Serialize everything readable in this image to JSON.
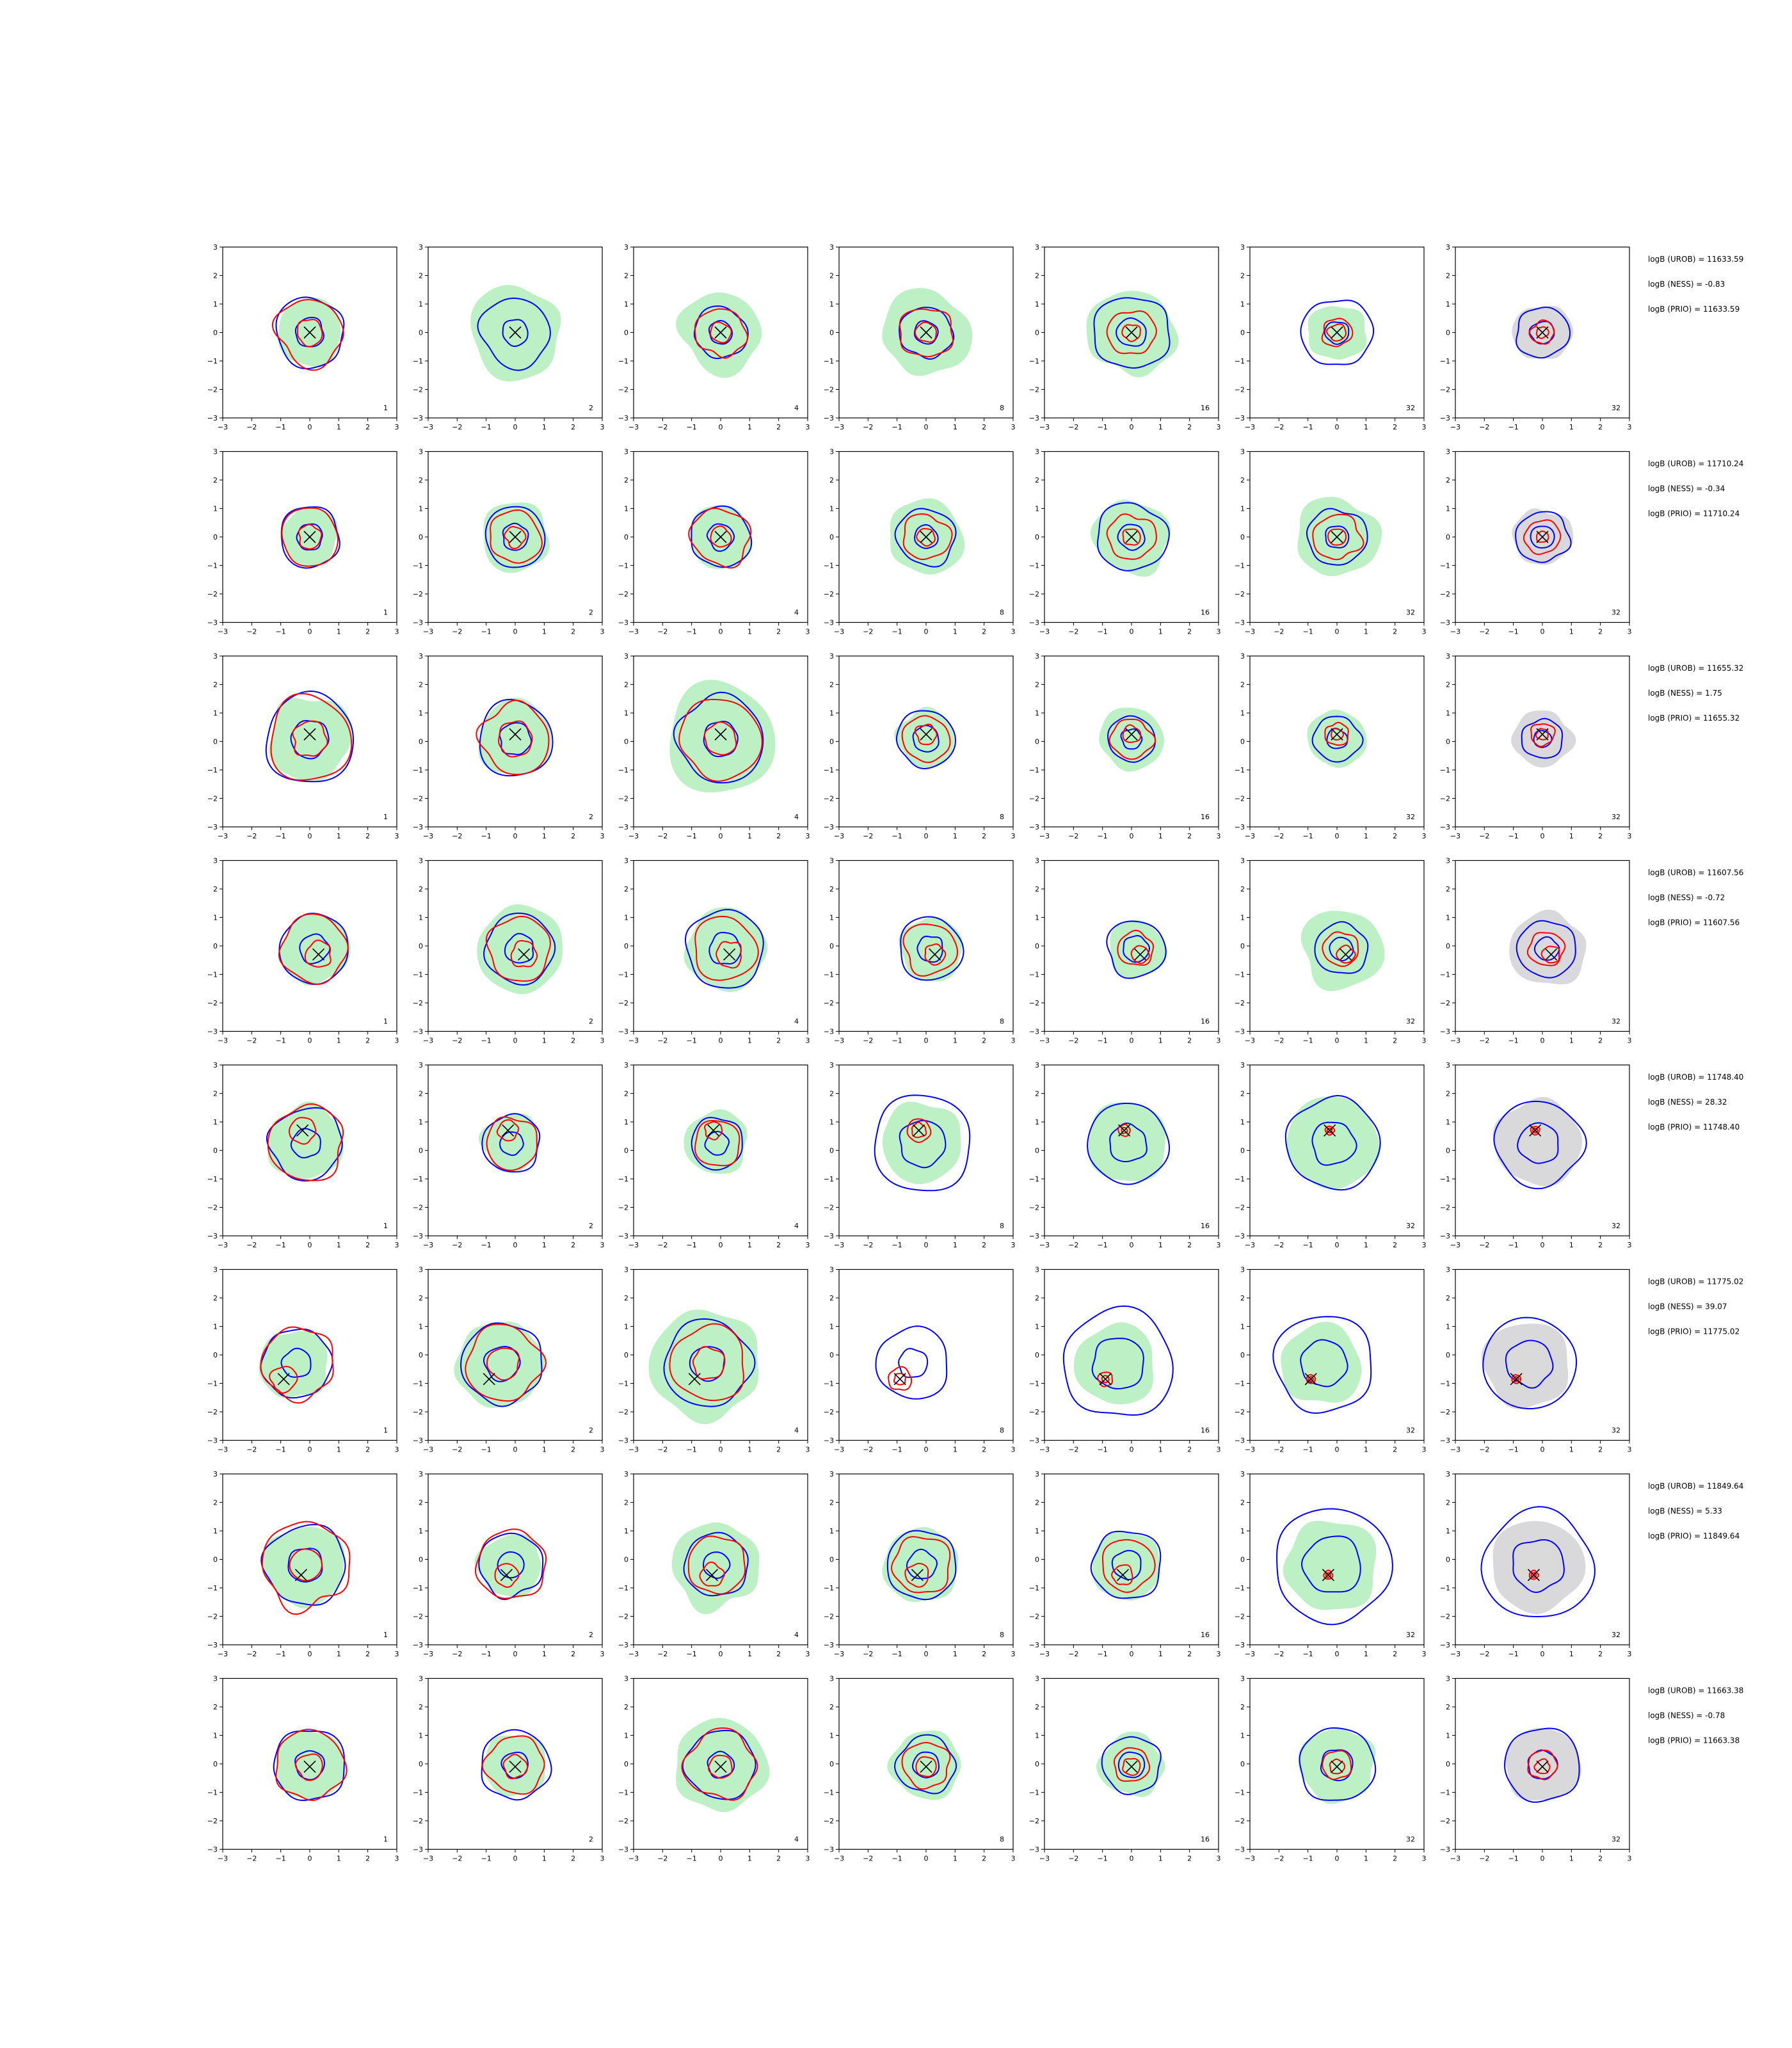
{
  "figure": {
    "colors": {
      "unrobust_contour": "#0000ff",
      "robust_contour": "#ff0000",
      "filled_green": "#bdf0c4",
      "filled_grey": "#d9d9db",
      "true_marker": "#000000"
    },
    "x_ticks": [
      "−3",
      "−2",
      "−1",
      "0",
      "1",
      "2",
      "3"
    ],
    "y_ticks": [
      "3",
      "2",
      "1",
      "0",
      "−1",
      "−2",
      "−3"
    ],
    "xlim": [
      -3,
      3
    ],
    "ylim": [
      -3,
      3
    ],
    "column_tags": [
      "1",
      "2",
      "4",
      "8",
      "16",
      "32",
      "32"
    ],
    "last_column_fill": "grey"
  },
  "chart_data": [
    {
      "type": "contour",
      "row": 1,
      "true_point": [
        0.0,
        0.0
      ],
      "stats": [
        "logB (UROB) = 11633.59",
        "logB (NESS) = -0.83",
        "logB (PRIO) = 11633.59"
      ],
      "panels": [
        {
          "n": 1,
          "fill_r": 1.15,
          "blue_r": [
            1.2,
            0.5
          ],
          "red_r": [
            1.15,
            0.45
          ]
        },
        {
          "n": 2,
          "fill_r": 1.6,
          "blue_r": [
            1.2,
            0.45
          ],
          "red_r": []
        },
        {
          "n": 4,
          "fill_r": 1.4,
          "blue_r": [
            0.9,
            0.4
          ],
          "red_r": [
            0.85,
            0.35
          ]
        },
        {
          "n": 8,
          "fill_r": 1.5,
          "blue_r": [
            0.9,
            0.4
          ],
          "red_r": [
            0.9,
            0.35
          ]
        },
        {
          "n": 16,
          "fill_r": 1.5,
          "blue_r": [
            1.3,
            0.5
          ],
          "red_r": [
            0.8,
            0.3
          ]
        },
        {
          "n": 32,
          "fill_r": 1.0,
          "blue_r": [
            1.2,
            0.4
          ],
          "red_r": [
            0.5,
            0.3
          ]
        },
        {
          "n": 32,
          "fill_r": 1.0,
          "blue_r": [
            0.9,
            0.4
          ],
          "red_r": [
            0.4,
            0.2
          ]
        }
      ]
    },
    {
      "type": "contour",
      "row": 2,
      "true_point": [
        0.0,
        0.0
      ],
      "stats": [
        "logB (UROB) = 11710.24",
        "logB (NESS) = -0.34",
        "logB (PRIO) = 11710.24"
      ],
      "panels": [
        {
          "n": 1,
          "fill_r": 1.0,
          "blue_r": [
            1.05,
            0.45
          ],
          "red_r": [
            1.0,
            0.4
          ]
        },
        {
          "n": 2,
          "fill_r": 1.2,
          "blue_r": [
            1.05,
            0.45
          ],
          "red_r": [
            0.9,
            0.35
          ]
        },
        {
          "n": 4,
          "fill_r": 1.1,
          "blue_r": [
            1.05,
            0.45
          ],
          "red_r": [
            1.0,
            0.35
          ]
        },
        {
          "n": 8,
          "fill_r": 1.3,
          "blue_r": [
            1.0,
            0.4
          ],
          "red_r": [
            0.8,
            0.3
          ]
        },
        {
          "n": 16,
          "fill_r": 1.3,
          "blue_r": [
            1.2,
            0.45
          ],
          "red_r": [
            0.8,
            0.3
          ]
        },
        {
          "n": 32,
          "fill_r": 1.4,
          "blue_r": [
            1.0,
            0.4
          ],
          "red_r": [
            0.8,
            0.3
          ]
        },
        {
          "n": 32,
          "fill_r": 1.0,
          "blue_r": [
            0.9,
            0.4
          ],
          "red_r": [
            0.6,
            0.2
          ]
        }
      ]
    },
    {
      "type": "contour",
      "row": 3,
      "true_point": [
        0.0,
        0.25
      ],
      "stats": [
        "logB (UROB) = 11655.32",
        "logB (NESS) = 1.75",
        "logB (PRIO) = 11655.32"
      ],
      "panels": [
        {
          "n": 1,
          "fill_r": 1.45,
          "blue_r": [
            1.55,
            0.65
          ],
          "red_r": [
            1.45,
            0.6
          ]
        },
        {
          "n": 2,
          "fill_r": 1.3,
          "blue_r": [
            1.3,
            0.55
          ],
          "red_r": [
            1.2,
            0.6
          ]
        },
        {
          "n": 4,
          "fill_r": 1.9,
          "blue_r": [
            1.5,
            0.6
          ],
          "red_r": [
            1.4,
            0.55
          ]
        },
        {
          "n": 8,
          "fill_r": 1.0,
          "blue_r": [
            1.0,
            0.45
          ],
          "red_r": [
            0.8,
            0.35
          ]
        },
        {
          "n": 16,
          "fill_r": 1.1,
          "blue_r": [
            0.8,
            0.35
          ],
          "red_r": [
            0.7,
            0.3
          ]
        },
        {
          "n": 32,
          "fill_r": 1.0,
          "blue_r": [
            0.8,
            0.35
          ],
          "red_r": [
            0.4,
            0.2
          ]
        },
        {
          "n": 32,
          "fill_r": 1.0,
          "blue_r": [
            0.7,
            0.3
          ],
          "red_r": [
            0.4,
            0.2
          ]
        }
      ]
    },
    {
      "type": "contour",
      "row": 4,
      "true_point": [
        0.3,
        -0.3
      ],
      "stats": [
        "logB (UROB) = 11607.56",
        "logB (NESS) = -0.72",
        "logB (PRIO) = 11607.56"
      ],
      "panels": [
        {
          "n": 1,
          "fill_r": 1.2,
          "blue_r": [
            1.2,
            0.5
          ],
          "red_r": [
            1.15,
            0.45
          ]
        },
        {
          "n": 2,
          "fill_r": 1.5,
          "blue_r": [
            1.2,
            0.5
          ],
          "red_r": [
            1.1,
            0.45
          ]
        },
        {
          "n": 4,
          "fill_r": 1.4,
          "blue_r": [
            1.35,
            0.55
          ],
          "red_r": [
            1.1,
            0.45
          ]
        },
        {
          "n": 8,
          "fill_r": 1.1,
          "blue_r": [
            1.1,
            0.45
          ],
          "red_r": [
            0.9,
            0.35
          ]
        },
        {
          "n": 16,
          "fill_r": 1.0,
          "blue_r": [
            1.0,
            0.45
          ],
          "red_r": [
            0.6,
            0.3
          ]
        },
        {
          "n": 32,
          "fill_r": 1.4,
          "blue_r": [
            0.9,
            0.4
          ],
          "red_r": [
            0.6,
            0.3
          ]
        },
        {
          "n": 32,
          "fill_r": 1.3,
          "blue_r": [
            1.0,
            0.4
          ],
          "red_r": [
            0.6,
            0.3
          ]
        }
      ]
    },
    {
      "type": "contour",
      "row": 5,
      "true_point": [
        -0.25,
        0.7
      ],
      "stats": [
        "logB (UROB) = 11748.40",
        "logB (NESS) = 28.32",
        "logB (PRIO) = 11748.40"
      ],
      "panels": [
        {
          "n": 1,
          "fill_r": 1.3,
          "blue_r": [
            1.25,
            0.5
          ],
          "red_r": [
            1.3,
            0.45
          ]
        },
        {
          "n": 2,
          "fill_r": 1.0,
          "blue_r": [
            1.0,
            0.4
          ],
          "red_r": [
            0.9,
            0.35
          ]
        },
        {
          "n": 4,
          "fill_r": 1.1,
          "blue_r": [
            0.9,
            0.4
          ],
          "red_r": [
            0.8,
            0.3
          ]
        },
        {
          "n": 8,
          "fill_r": 1.4,
          "blue_r": [
            1.7,
            0.8
          ],
          "red_r": [
            0.4,
            0.25
          ]
        },
        {
          "n": 16,
          "fill_r": 1.4,
          "blue_r": [
            1.4,
            0.65
          ],
          "red_r": [
            0.2,
            0.1
          ]
        },
        {
          "n": 32,
          "fill_r": 1.6,
          "blue_r": [
            1.6,
            0.75
          ],
          "red_r": [
            0.15,
            0.08
          ]
        },
        {
          "n": 32,
          "fill_r": 1.5,
          "blue_r": [
            1.5,
            0.7
          ],
          "red_r": [
            0.15,
            0.08
          ]
        }
      ]
    },
    {
      "type": "contour",
      "row": 6,
      "true_point": [
        -0.9,
        -0.85
      ],
      "stats": [
        "logB (UROB) = 11775.02",
        "logB (NESS) = 39.07",
        "logB (PRIO) = 11775.02"
      ],
      "panels": [
        {
          "n": 1,
          "fill_r": 1.2,
          "blue_r": [
            1.2,
            0.5
          ],
          "red_r": [
            1.25,
            0.45
          ]
        },
        {
          "n": 2,
          "fill_r": 1.5,
          "blue_r": [
            1.4,
            0.6
          ],
          "red_r": [
            1.3,
            0.55
          ]
        },
        {
          "n": 4,
          "fill_r": 1.9,
          "blue_r": [
            1.5,
            0.6
          ],
          "red_r": [
            1.3,
            0.55
          ]
        },
        {
          "n": 8,
          "fill_r": 0.0,
          "blue_r": [
            1.25,
            0.5
          ],
          "red_r": [
            0.4,
            0.2
          ]
        },
        {
          "n": 16,
          "fill_r": 1.4,
          "blue_r": [
            1.9,
            0.9
          ],
          "red_r": [
            0.25,
            0.12
          ]
        },
        {
          "n": 32,
          "fill_r": 1.4,
          "blue_r": [
            1.7,
            0.8
          ],
          "red_r": [
            0.15,
            0.08
          ]
        },
        {
          "n": 32,
          "fill_r": 1.5,
          "blue_r": [
            1.6,
            0.8
          ],
          "red_r": [
            0.15,
            0.08
          ]
        }
      ]
    },
    {
      "type": "contour",
      "row": 7,
      "true_point": [
        -0.3,
        -0.55
      ],
      "stats": [
        "logB (UROB) = 11849.64",
        "logB (NESS) = 5.33",
        "logB (PRIO) = 11849.64"
      ],
      "panels": [
        {
          "n": 1,
          "fill_r": 1.4,
          "blue_r": [
            1.4,
            0.6
          ],
          "red_r": [
            1.5,
            0.55
          ]
        },
        {
          "n": 2,
          "fill_r": 1.1,
          "blue_r": [
            1.1,
            0.45
          ],
          "red_r": [
            1.2,
            0.4
          ]
        },
        {
          "n": 4,
          "fill_r": 1.5,
          "blue_r": [
            1.1,
            0.45
          ],
          "red_r": [
            1.0,
            0.4
          ]
        },
        {
          "n": 8,
          "fill_r": 1.3,
          "blue_r": [
            1.2,
            0.5
          ],
          "red_r": [
            1.0,
            0.4
          ]
        },
        {
          "n": 16,
          "fill_r": 1.2,
          "blue_r": [
            1.2,
            0.5
          ],
          "red_r": [
            0.9,
            0.35
          ]
        },
        {
          "n": 32,
          "fill_r": 1.6,
          "blue_r": [
            2.0,
            1.0
          ],
          "red_r": [
            0.15,
            0.08
          ]
        },
        {
          "n": 32,
          "fill_r": 1.6,
          "blue_r": [
            1.9,
            0.9
          ],
          "red_r": [
            0.15,
            0.08
          ]
        }
      ]
    },
    {
      "type": "contour",
      "row": 8,
      "true_point": [
        0.0,
        -0.1
      ],
      "stats": [
        "logB (UROB) = 11663.38",
        "logB (NESS) = -0.78",
        "logB (PRIO) = 11663.38"
      ],
      "panels": [
        {
          "n": 1,
          "fill_r": 1.2,
          "blue_r": [
            1.25,
            0.5
          ],
          "red_r": [
            1.2,
            0.45
          ]
        },
        {
          "n": 2,
          "fill_r": 1.1,
          "blue_r": [
            1.2,
            0.45
          ],
          "red_r": [
            1.0,
            0.4
          ]
        },
        {
          "n": 4,
          "fill_r": 1.6,
          "blue_r": [
            1.2,
            0.45
          ],
          "red_r": [
            1.2,
            0.4
          ]
        },
        {
          "n": 8,
          "fill_r": 1.2,
          "blue_r": [
            1.0,
            0.45
          ],
          "red_r": [
            0.8,
            0.35
          ]
        },
        {
          "n": 16,
          "fill_r": 1.1,
          "blue_r": [
            1.0,
            0.45
          ],
          "red_r": [
            0.6,
            0.3
          ]
        },
        {
          "n": 32,
          "fill_r": 1.3,
          "blue_r": [
            1.3,
            0.55
          ],
          "red_r": [
            0.5,
            0.25
          ]
        },
        {
          "n": 32,
          "fill_r": 1.3,
          "blue_r": [
            1.3,
            0.5
          ],
          "red_r": [
            0.5,
            0.25
          ]
        }
      ]
    }
  ]
}
